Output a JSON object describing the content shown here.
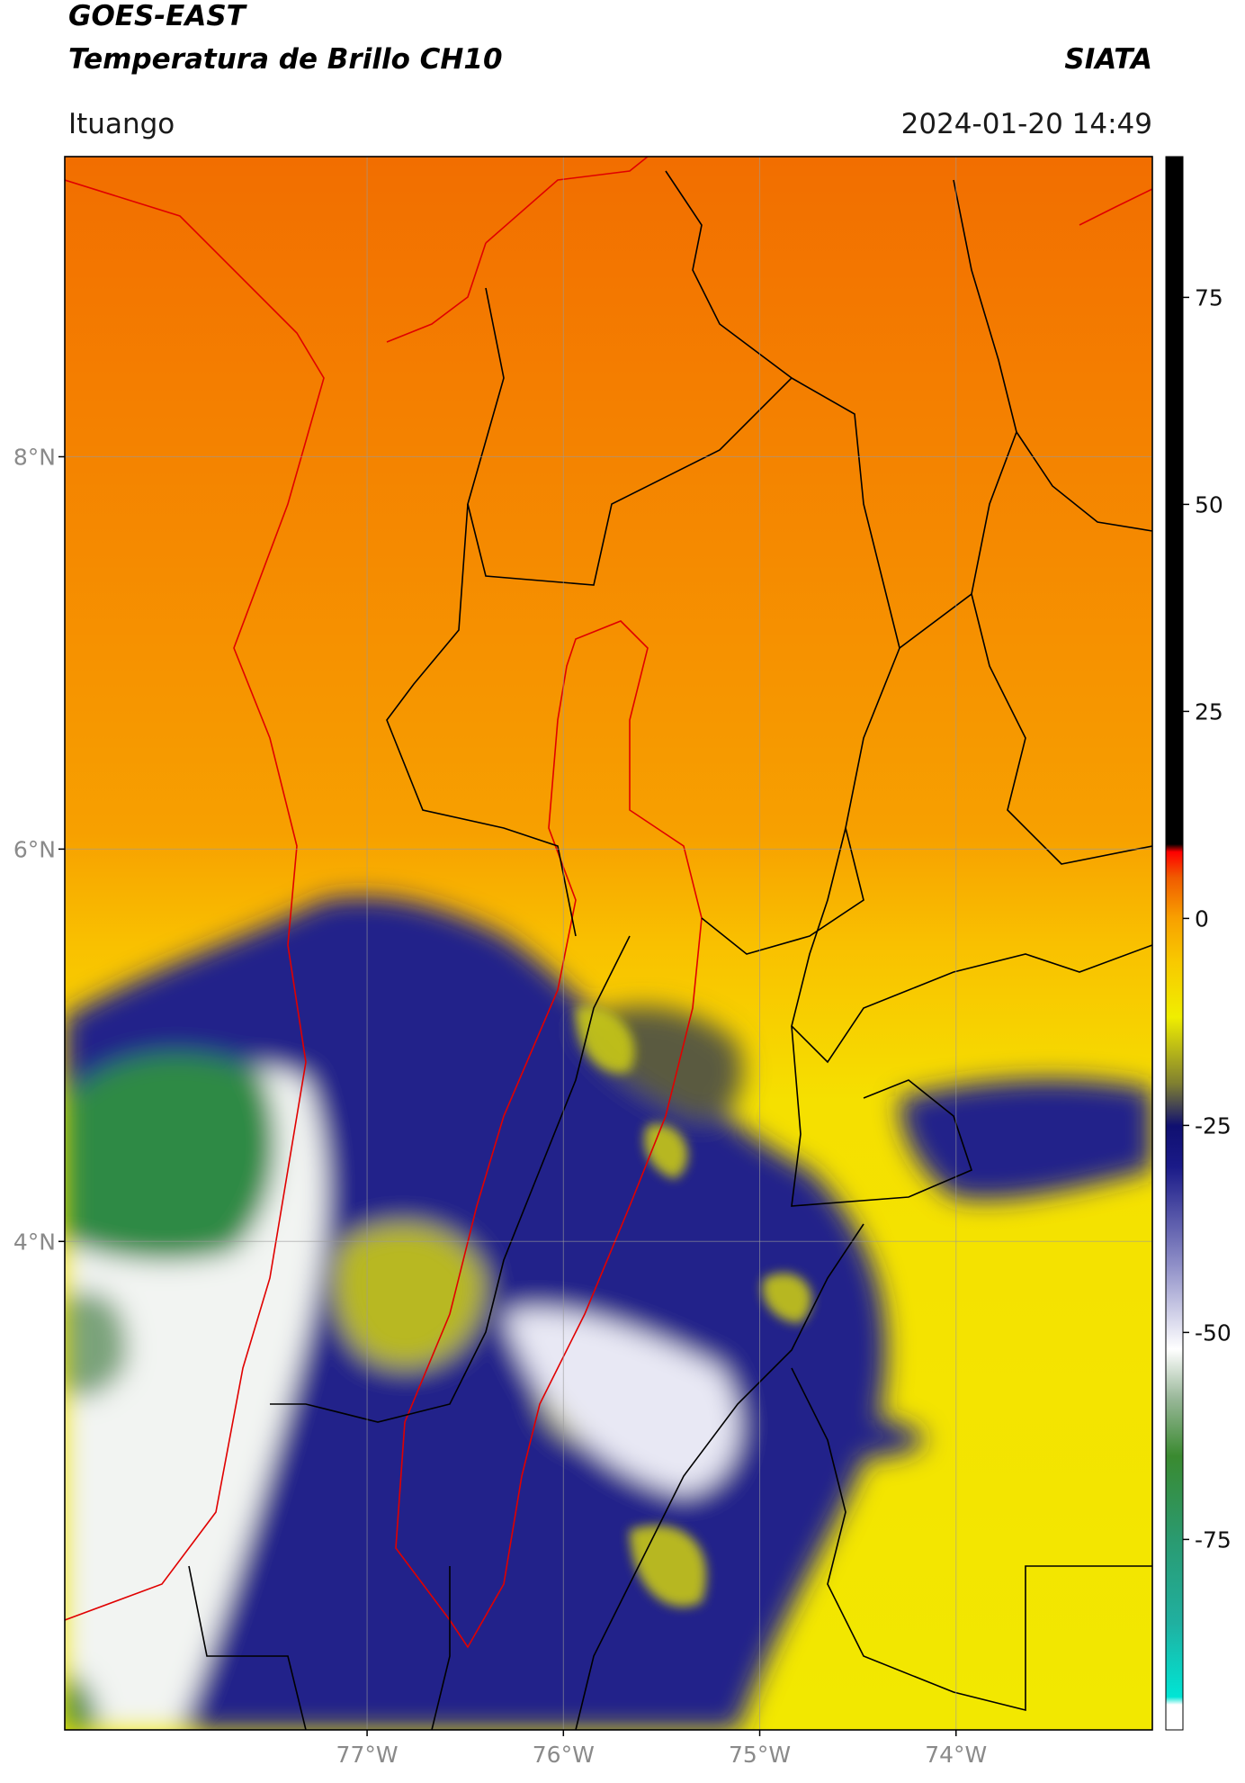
{
  "header": {
    "title_line1": "GOES-EAST",
    "title_line2": "Temperatura de Brillo CH10",
    "source": "SIATA",
    "region": "Ituango",
    "datetime": "2024-01-20 14:49"
  },
  "map": {
    "lon_range": [
      -78.54,
      -73.0
    ],
    "lat_range": [
      1.51,
      9.53
    ],
    "lat_ticks": [
      {
        "value": 8,
        "label": "8°N"
      },
      {
        "value": 6,
        "label": "6°N"
      },
      {
        "value": 4,
        "label": "4°N"
      }
    ],
    "lon_ticks": [
      {
        "value": -77,
        "label": "77°W"
      },
      {
        "value": -76,
        "label": "76°W"
      },
      {
        "value": -75,
        "label": "75°W"
      },
      {
        "value": -74,
        "label": "74°W"
      }
    ],
    "grid": true
  },
  "colorbar": {
    "lim": [
      -98,
      92
    ],
    "ticks": [
      75,
      50,
      25,
      0,
      -25,
      -50,
      -75
    ]
  }
}
